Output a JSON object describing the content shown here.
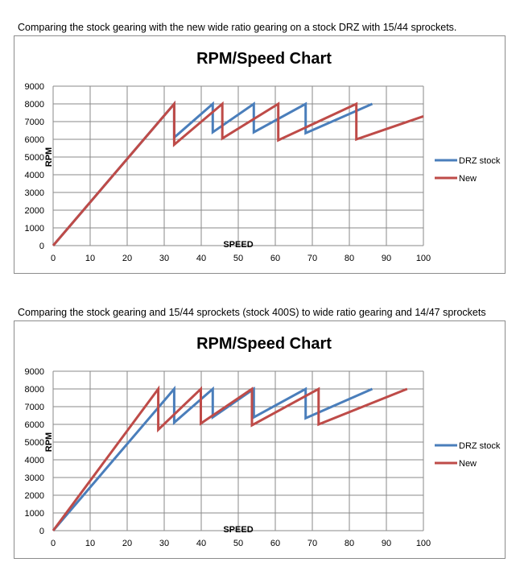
{
  "captions": [
    "Comparing the stock gearing with the new wide ratio gearing on a stock DRZ with 15/44 sprockets.",
    "Comparing the stock gearing and 15/44 sprockets (stock 400S) to wide ratio gearing and 14/47 sprockets"
  ],
  "colors": {
    "drz_stock": "#4a7ebb",
    "new": "#be4b48",
    "grid": "#8a8a8a"
  },
  "chart_data": [
    {
      "type": "line",
      "title": "RPM/Speed Chart",
      "xlabel": "SPEED",
      "ylabel": "RPM",
      "xlim": [
        0,
        100
      ],
      "ylim": [
        0,
        9000
      ],
      "xticks": [
        0,
        10,
        20,
        30,
        40,
        50,
        60,
        70,
        80,
        90,
        100
      ],
      "yticks": [
        0,
        1000,
        2000,
        3000,
        4000,
        5000,
        6000,
        7000,
        8000,
        9000
      ],
      "grid": true,
      "legend_position": "right",
      "series": [
        {
          "name": "DRZ stock",
          "color": "#4a7ebb",
          "x": [
            0,
            32.7,
            32.7,
            43.1,
            43.1,
            54.2,
            54.2,
            68.2,
            68.2,
            86.2
          ],
          "y": [
            0,
            8000,
            6100,
            8000,
            6400,
            8000,
            6400,
            8000,
            6350,
            8000
          ]
        },
        {
          "name": "New",
          "color": "#be4b48",
          "x": [
            0,
            32.7,
            32.7,
            45.7,
            45.7,
            60.8,
            60.8,
            81.9,
            81.9,
            100
          ],
          "y": [
            0,
            8000,
            5700,
            8000,
            6050,
            8000,
            5950,
            8000,
            6000,
            7300
          ]
        }
      ]
    },
    {
      "type": "line",
      "title": "RPM/Speed Chart",
      "xlabel": "SPEED",
      "ylabel": "RPM",
      "xlim": [
        0,
        100
      ],
      "ylim": [
        0,
        9000
      ],
      "xticks": [
        0,
        10,
        20,
        30,
        40,
        50,
        60,
        70,
        80,
        90,
        100
      ],
      "yticks": [
        0,
        1000,
        2000,
        3000,
        4000,
        5000,
        6000,
        7000,
        8000,
        9000
      ],
      "grid": true,
      "legend_position": "right",
      "series": [
        {
          "name": "DRZ stock",
          "color": "#4a7ebb",
          "x": [
            0,
            32.7,
            32.7,
            43.1,
            43.1,
            54.2,
            54.2,
            68.2,
            68.2,
            86.2
          ],
          "y": [
            0,
            8000,
            6100,
            8000,
            6400,
            8000,
            6400,
            8000,
            6350,
            8000
          ]
        },
        {
          "name": "New",
          "color": "#be4b48",
          "x": [
            0,
            28.4,
            28.4,
            39.9,
            39.9,
            53.7,
            53.7,
            71.7,
            71.7,
            95.6
          ],
          "y": [
            0,
            8000,
            5700,
            8000,
            6050,
            8000,
            5950,
            8000,
            6000,
            8000
          ]
        }
      ]
    }
  ]
}
